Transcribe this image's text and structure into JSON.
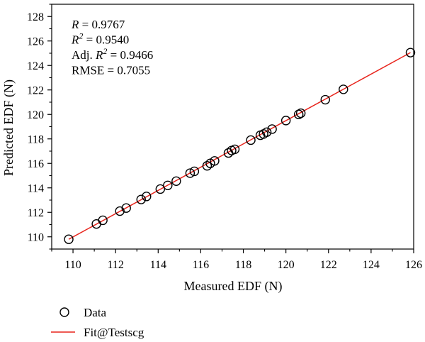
{
  "chart_data": {
    "type": "scatter",
    "xlabel": "Measured EDF (N)",
    "ylabel": "Predicted EDF (N)",
    "xlim": [
      109,
      126
    ],
    "ylim": [
      109,
      129
    ],
    "xticks": [
      110,
      112,
      114,
      116,
      118,
      120,
      122,
      124,
      126
    ],
    "yticks": [
      110,
      112,
      114,
      116,
      118,
      120,
      122,
      124,
      126,
      128
    ],
    "grid": false,
    "legend_position": "below",
    "stats": [
      {
        "label": "R",
        "sup": "",
        "value": "= 0.9767"
      },
      {
        "label": "R",
        "sup": "2",
        "value": "= 0.9540"
      },
      {
        "label": "Adj. R",
        "sup": "2",
        "value": "= 0.9466"
      },
      {
        "label": "RMSE",
        "sup": "",
        "value": "= 0.7055"
      }
    ],
    "series": [
      {
        "name": "Data",
        "kind": "scatter",
        "marker": "open-circle",
        "color": "#000000",
        "points": [
          [
            109.8,
            109.8
          ],
          [
            111.1,
            111.05
          ],
          [
            111.4,
            111.35
          ],
          [
            112.2,
            112.1
          ],
          [
            112.5,
            112.35
          ],
          [
            113.2,
            113.05
          ],
          [
            113.45,
            113.3
          ],
          [
            114.1,
            113.9
          ],
          [
            114.45,
            114.2
          ],
          [
            114.85,
            114.55
          ],
          [
            115.5,
            115.2
          ],
          [
            115.7,
            115.35
          ],
          [
            116.3,
            115.8
          ],
          [
            116.45,
            116.0
          ],
          [
            116.65,
            116.2
          ],
          [
            117.3,
            116.85
          ],
          [
            117.45,
            117.05
          ],
          [
            117.6,
            117.15
          ],
          [
            118.35,
            117.9
          ],
          [
            118.8,
            118.3
          ],
          [
            118.95,
            118.4
          ],
          [
            119.1,
            118.55
          ],
          [
            119.35,
            118.8
          ],
          [
            120.0,
            119.5
          ],
          [
            120.6,
            120.0
          ],
          [
            120.7,
            120.1
          ],
          [
            121.85,
            121.2
          ],
          [
            122.7,
            122.05
          ],
          [
            125.85,
            125.05
          ]
        ]
      },
      {
        "name": "Fit@Testscg",
        "kind": "line",
        "color": "#e8241c",
        "x": [
          109.8,
          125.85
        ],
        "y": [
          109.8,
          125.05
        ]
      }
    ]
  }
}
